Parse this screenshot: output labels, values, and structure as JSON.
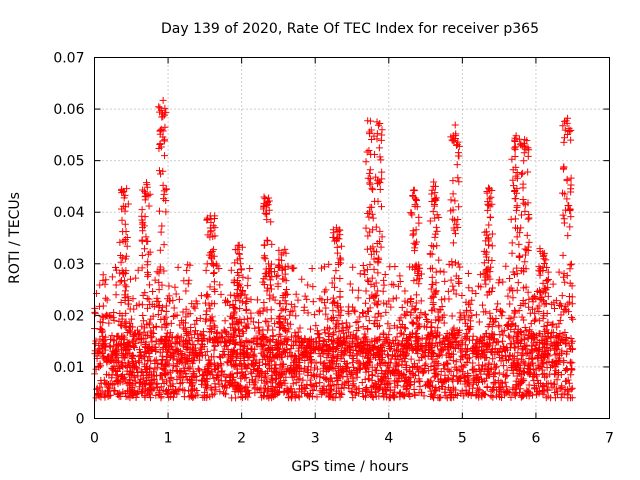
{
  "chart_data": {
    "type": "scatter",
    "title": "Day 139 of 2020, Rate Of TEC Index for receiver p365",
    "xlabel": "GPS time / hours",
    "ylabel": "ROTI / TECUs",
    "xlim": [
      0,
      7
    ],
    "ylim": [
      0,
      0.07
    ],
    "xticks": [
      "0",
      "1",
      "2",
      "3",
      "4",
      "5",
      "6",
      "7"
    ],
    "yticks": [
      "0",
      "0.01",
      "0.02",
      "0.03",
      "0.04",
      "0.05",
      "0.06",
      "0.07"
    ],
    "grid": true,
    "marker": "+",
    "series_color": "#ff0000",
    "data_span_hours": [
      0,
      6.5
    ],
    "baseline_range": [
      0.004,
      0.016
    ],
    "peaks": [
      {
        "x": 0.4,
        "y": 0.045
      },
      {
        "x": 0.7,
        "y": 0.046
      },
      {
        "x": 0.92,
        "y": 0.062
      },
      {
        "x": 1.58,
        "y": 0.04
      },
      {
        "x": 1.95,
        "y": 0.034
      },
      {
        "x": 2.35,
        "y": 0.043
      },
      {
        "x": 2.55,
        "y": 0.033
      },
      {
        "x": 3.3,
        "y": 0.037
      },
      {
        "x": 3.75,
        "y": 0.059
      },
      {
        "x": 3.85,
        "y": 0.058
      },
      {
        "x": 4.35,
        "y": 0.045
      },
      {
        "x": 4.62,
        "y": 0.046
      },
      {
        "x": 4.9,
        "y": 0.057
      },
      {
        "x": 5.35,
        "y": 0.045
      },
      {
        "x": 5.72,
        "y": 0.055
      },
      {
        "x": 5.85,
        "y": 0.055
      },
      {
        "x": 6.1,
        "y": 0.033
      },
      {
        "x": 6.42,
        "y": 0.059
      }
    ]
  }
}
